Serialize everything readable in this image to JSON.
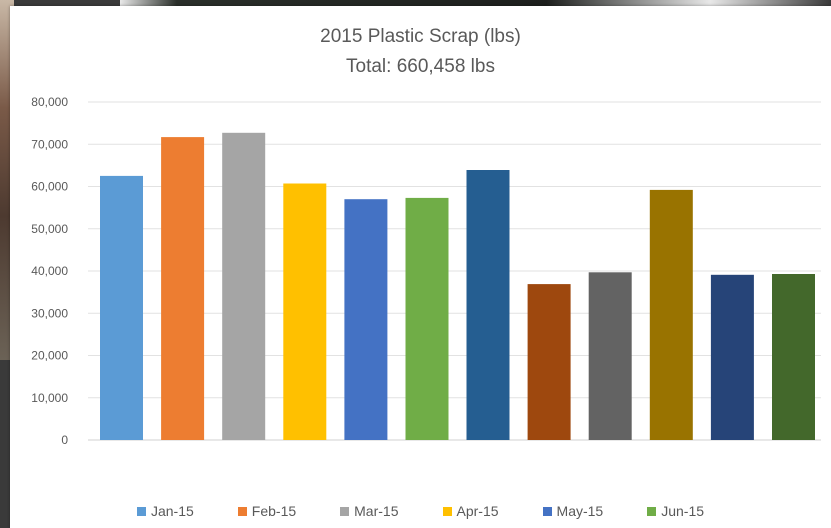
{
  "chart_data": {
    "type": "bar",
    "title": "2015 Plastic Scrap (lbs)",
    "subtitle": "Total: 660,458 lbs",
    "xlabel": "",
    "ylabel": "",
    "ylim": [
      0,
      80000
    ],
    "yticks": [
      0,
      10000,
      20000,
      30000,
      40000,
      50000,
      60000,
      70000,
      80000
    ],
    "ytick_labels": [
      "0",
      "10,000",
      "20,000",
      "30,000",
      "40,000",
      "50,000",
      "60,000",
      "70,000",
      "80,000"
    ],
    "grid": true,
    "legend_position": "bottom",
    "values": [
      62500,
      71700,
      72700,
      60700,
      57000,
      57300,
      63900,
      36900,
      39700,
      59200,
      39100,
      39300
    ],
    "colors": [
      "#5b9bd5",
      "#ed7d31",
      "#a5a5a5",
      "#ffc000",
      "#4472c4",
      "#70ad47",
      "#255e91",
      "#9e480e",
      "#636363",
      "#997300",
      "#264478",
      "#43682b"
    ],
    "legend": [
      {
        "label": "Jan-15",
        "color": "#5b9bd5"
      },
      {
        "label": "Feb-15",
        "color": "#ed7d31"
      },
      {
        "label": "Mar-15",
        "color": "#a5a5a5"
      },
      {
        "label": "Apr-15",
        "color": "#ffc000"
      },
      {
        "label": "May-15",
        "color": "#4472c4"
      },
      {
        "label": "Jun-15",
        "color": "#70ad47"
      }
    ]
  }
}
